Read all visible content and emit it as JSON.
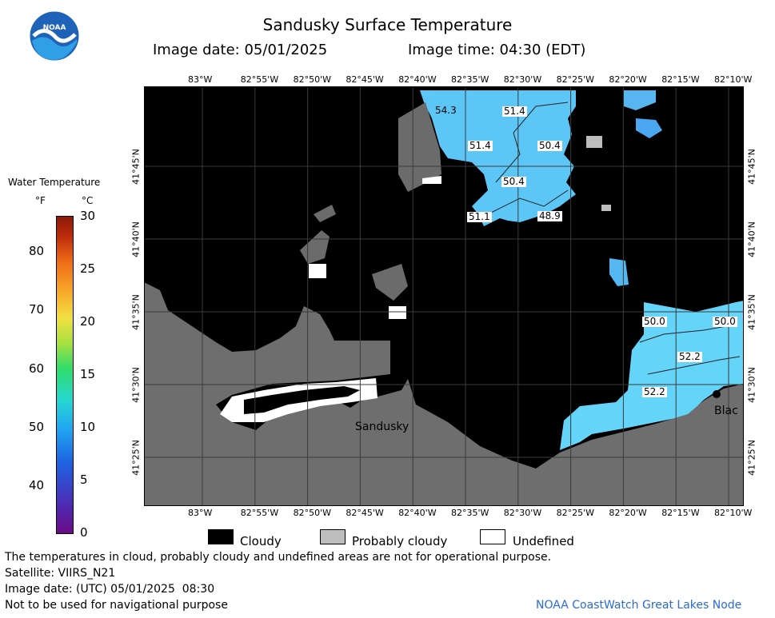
{
  "header": {
    "title": "Sandusky Surface Temperature",
    "image_date": "Image date: 05/01/2025",
    "image_time": "Image time: 04:30 (EDT)"
  },
  "logo": {
    "text": "NOAA"
  },
  "colorbar": {
    "title": "Water Temperature",
    "unit_f": "°F",
    "unit_c": "°C",
    "f_ticks": [
      "80",
      "70",
      "60",
      "50",
      "40"
    ],
    "c_ticks": [
      "30",
      "25",
      "20",
      "15",
      "10",
      "5",
      "0"
    ]
  },
  "axes": {
    "lon_labels": [
      "83°W",
      "82°55'W",
      "82°50'W",
      "82°45'W",
      "82°40'W",
      "82°35'W",
      "82°30'W",
      "82°25'W",
      "82°20'W",
      "82°15'W",
      "82°10'W"
    ],
    "lat_labels": [
      "41°45'N",
      "41°40'N",
      "41°35'N",
      "41°30'N",
      "41°25'N"
    ]
  },
  "map_labels": {
    "temps": [
      "54.3",
      "51.4",
      "51.4",
      "50.4",
      "50.4",
      "51.1",
      "48.9",
      "50.0",
      "50.0",
      "52.2",
      "52.2"
    ],
    "places": [
      "Sandusky",
      "Blac"
    ]
  },
  "legend": {
    "cloudy": "Cloudy",
    "probably_cloudy": "Probably cloudy",
    "undefined": "Undefined",
    "colors": {
      "cloudy": "#000000",
      "probably_cloudy": "#bdbdbd",
      "undefined": "#ffffff"
    }
  },
  "footer": {
    "disclaimer": "The temperatures in cloud, probably cloudy and undefined areas are not for operational purpose.",
    "satellite": "Satellite: VIIRS_N21",
    "utc_date": "Image date: (UTC) 05/01/2025  08:30",
    "nav_warning": "Not to be used for navigational purpose",
    "credit": "NOAA CoastWatch Great Lakes Node"
  },
  "colors": {
    "land": "#6e6e6e",
    "water_warm": "#5fd0f8",
    "water_cool": "#56b8f0",
    "grid": "#3a3a3a",
    "credit": "#2b6bd6"
  }
}
